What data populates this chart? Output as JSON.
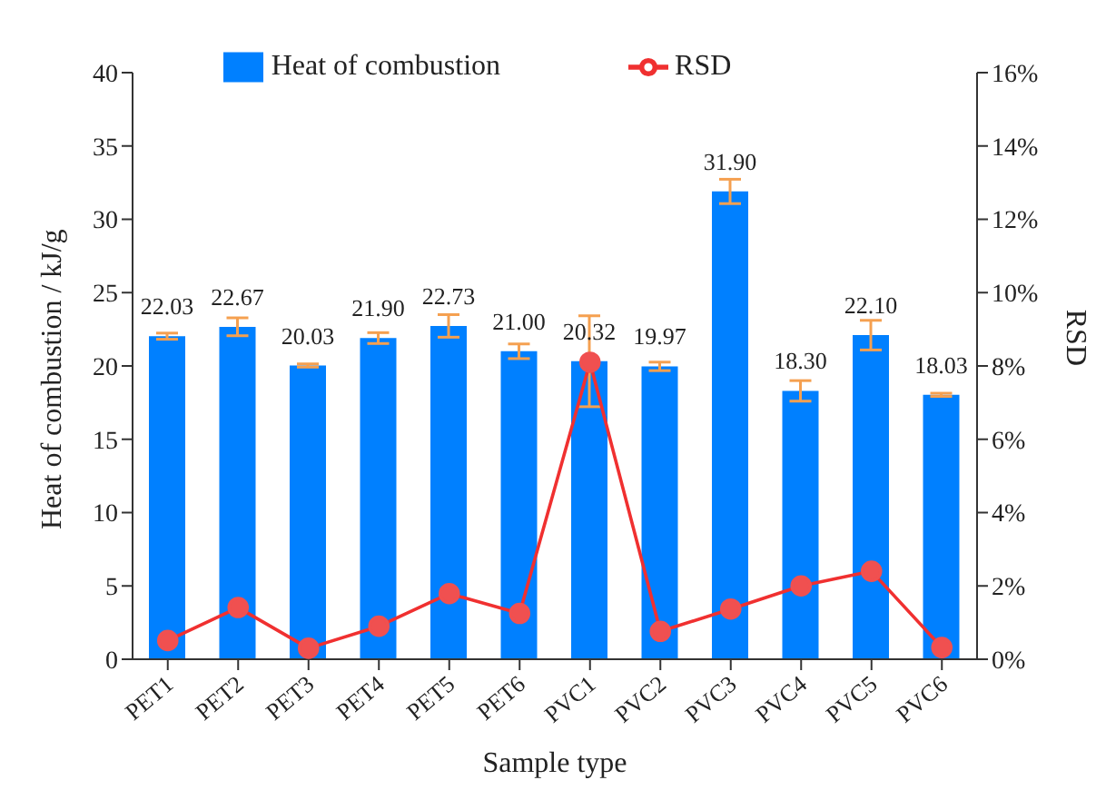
{
  "chart_data": {
    "type": "bar",
    "xlabel": "Sample type",
    "ylabel": "Heat of combustion / kJ/g",
    "y2label": "RSD",
    "categories": [
      "PET1",
      "PET2",
      "PET3",
      "PET4",
      "PET5",
      "PET6",
      "PVC1",
      "PVC2",
      "PVC3",
      "PVC4",
      "PVC5",
      "PVC6"
    ],
    "series": [
      {
        "name": "Heat of combustion",
        "color": "#0080ff",
        "values": [
          22.03,
          22.67,
          20.03,
          21.9,
          22.73,
          21.0,
          20.32,
          19.97,
          31.9,
          18.3,
          22.1,
          18.03
        ],
        "errors": [
          0.21,
          0.61,
          0.11,
          0.37,
          0.77,
          0.5,
          3.1,
          0.29,
          0.83,
          0.7,
          1.01,
          0.11
        ],
        "value_labels": [
          "22.03",
          "22.67",
          "20.03",
          "21.90",
          "22.73",
          "21.00",
          "20.32",
          "19.97",
          "31.90",
          "18.30",
          "22.10",
          "18.03"
        ]
      },
      {
        "name": "RSD",
        "type": "line",
        "axis": "y2",
        "color": "#f03030",
        "values": [
          0.51,
          1.41,
          0.3,
          0.9,
          1.79,
          1.25,
          8.1,
          0.76,
          1.37,
          2.0,
          2.4,
          0.32
        ]
      }
    ],
    "ylim": [
      0,
      40
    ],
    "yticks": [
      0,
      5,
      10,
      15,
      20,
      25,
      30,
      35,
      40
    ],
    "y2lim": [
      0,
      16
    ],
    "y2ticks": [
      {
        "value": 0,
        "label": "0%"
      },
      {
        "value": 2,
        "label": "2%"
      },
      {
        "value": 4,
        "label": "4%"
      },
      {
        "value": 6,
        "label": "6%"
      },
      {
        "value": 8,
        "label": "8%"
      },
      {
        "value": 10,
        "label": "10%"
      },
      {
        "value": 12,
        "label": "12%"
      },
      {
        "value": 14,
        "label": "14%"
      },
      {
        "value": 16,
        "label": "16%"
      }
    ],
    "legend": "top",
    "marker": "circle",
    "line_style": "solid",
    "grid": false
  }
}
